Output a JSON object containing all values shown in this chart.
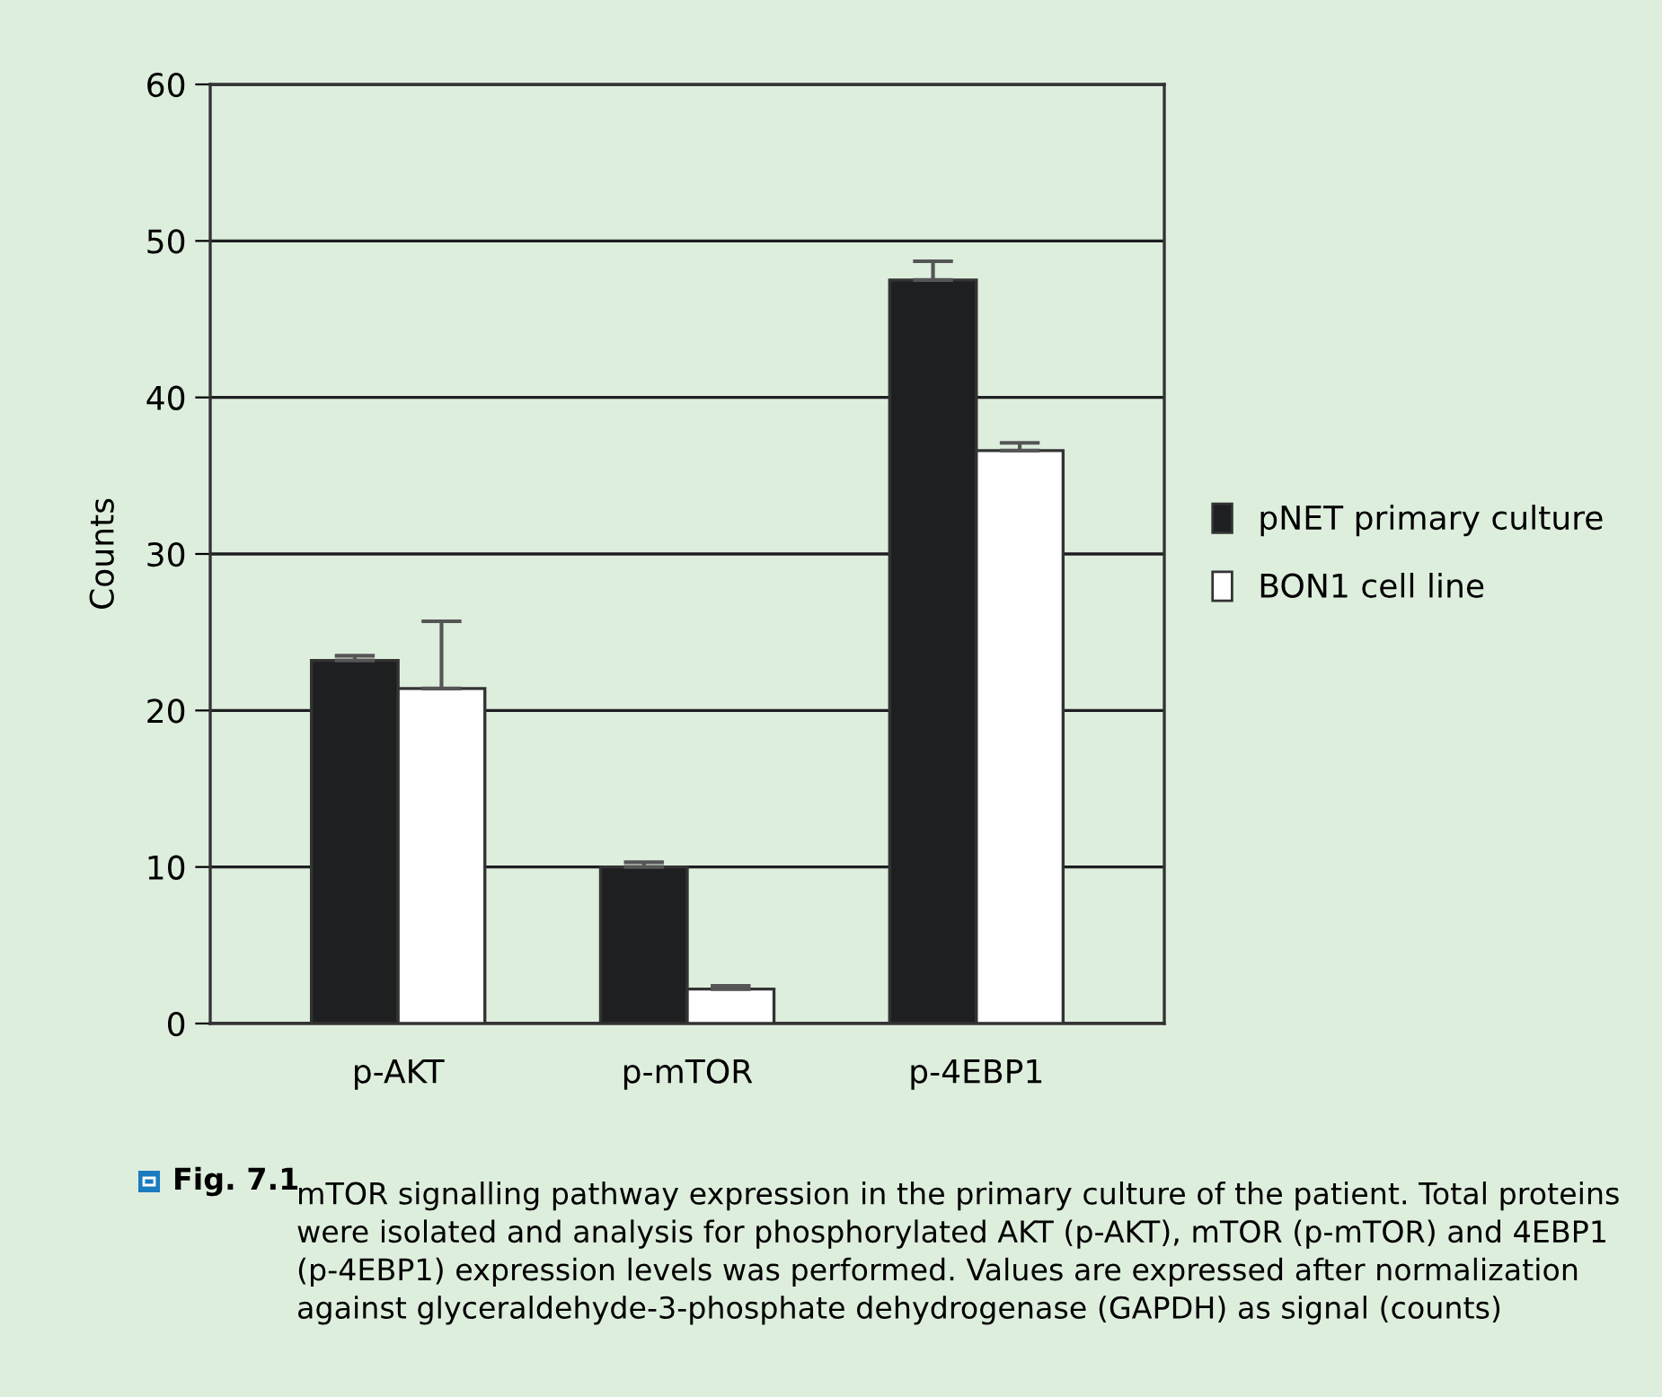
{
  "chart_data": {
    "type": "bar",
    "ylabel": "Counts",
    "categories": [
      "p-AKT",
      "p-mTOR",
      "p-4EBP1"
    ],
    "series": [
      {
        "name": "pNET primary culture",
        "color": "#1e1f21",
        "values": [
          23.2,
          10.0,
          47.5
        ],
        "errors": [
          [
            23.2,
            23.5
          ],
          [
            10.0,
            10.3
          ],
          [
            47.5,
            48.7
          ]
        ]
      },
      {
        "name": "BON1 cell line",
        "color": "#ffffff",
        "values": [
          21.4,
          2.2,
          36.6
        ],
        "errors": [
          [
            21.4,
            25.7
          ],
          [
            2.2,
            2.4
          ],
          [
            36.6,
            37.1
          ]
        ]
      }
    ],
    "ylim": [
      0,
      60
    ],
    "yticks": [
      0,
      10,
      20,
      30,
      40,
      50,
      60
    ],
    "grid": "y",
    "legend": "right",
    "annotations": [
      "Fig. 7.1",
      "mTOR signalling pathway expression in the primary culture of the patient. Total proteins were isolated and analysis for phosphorylated AKT (p-AKT), mTOR (p-mTOR) and 4EBP1 (p-4EBP1) expression levels was performed. Values are expressed after normalization against glyceraldehyde-3-phosphate dehydrogenase (GAPDH) as signal (counts)"
    ]
  }
}
